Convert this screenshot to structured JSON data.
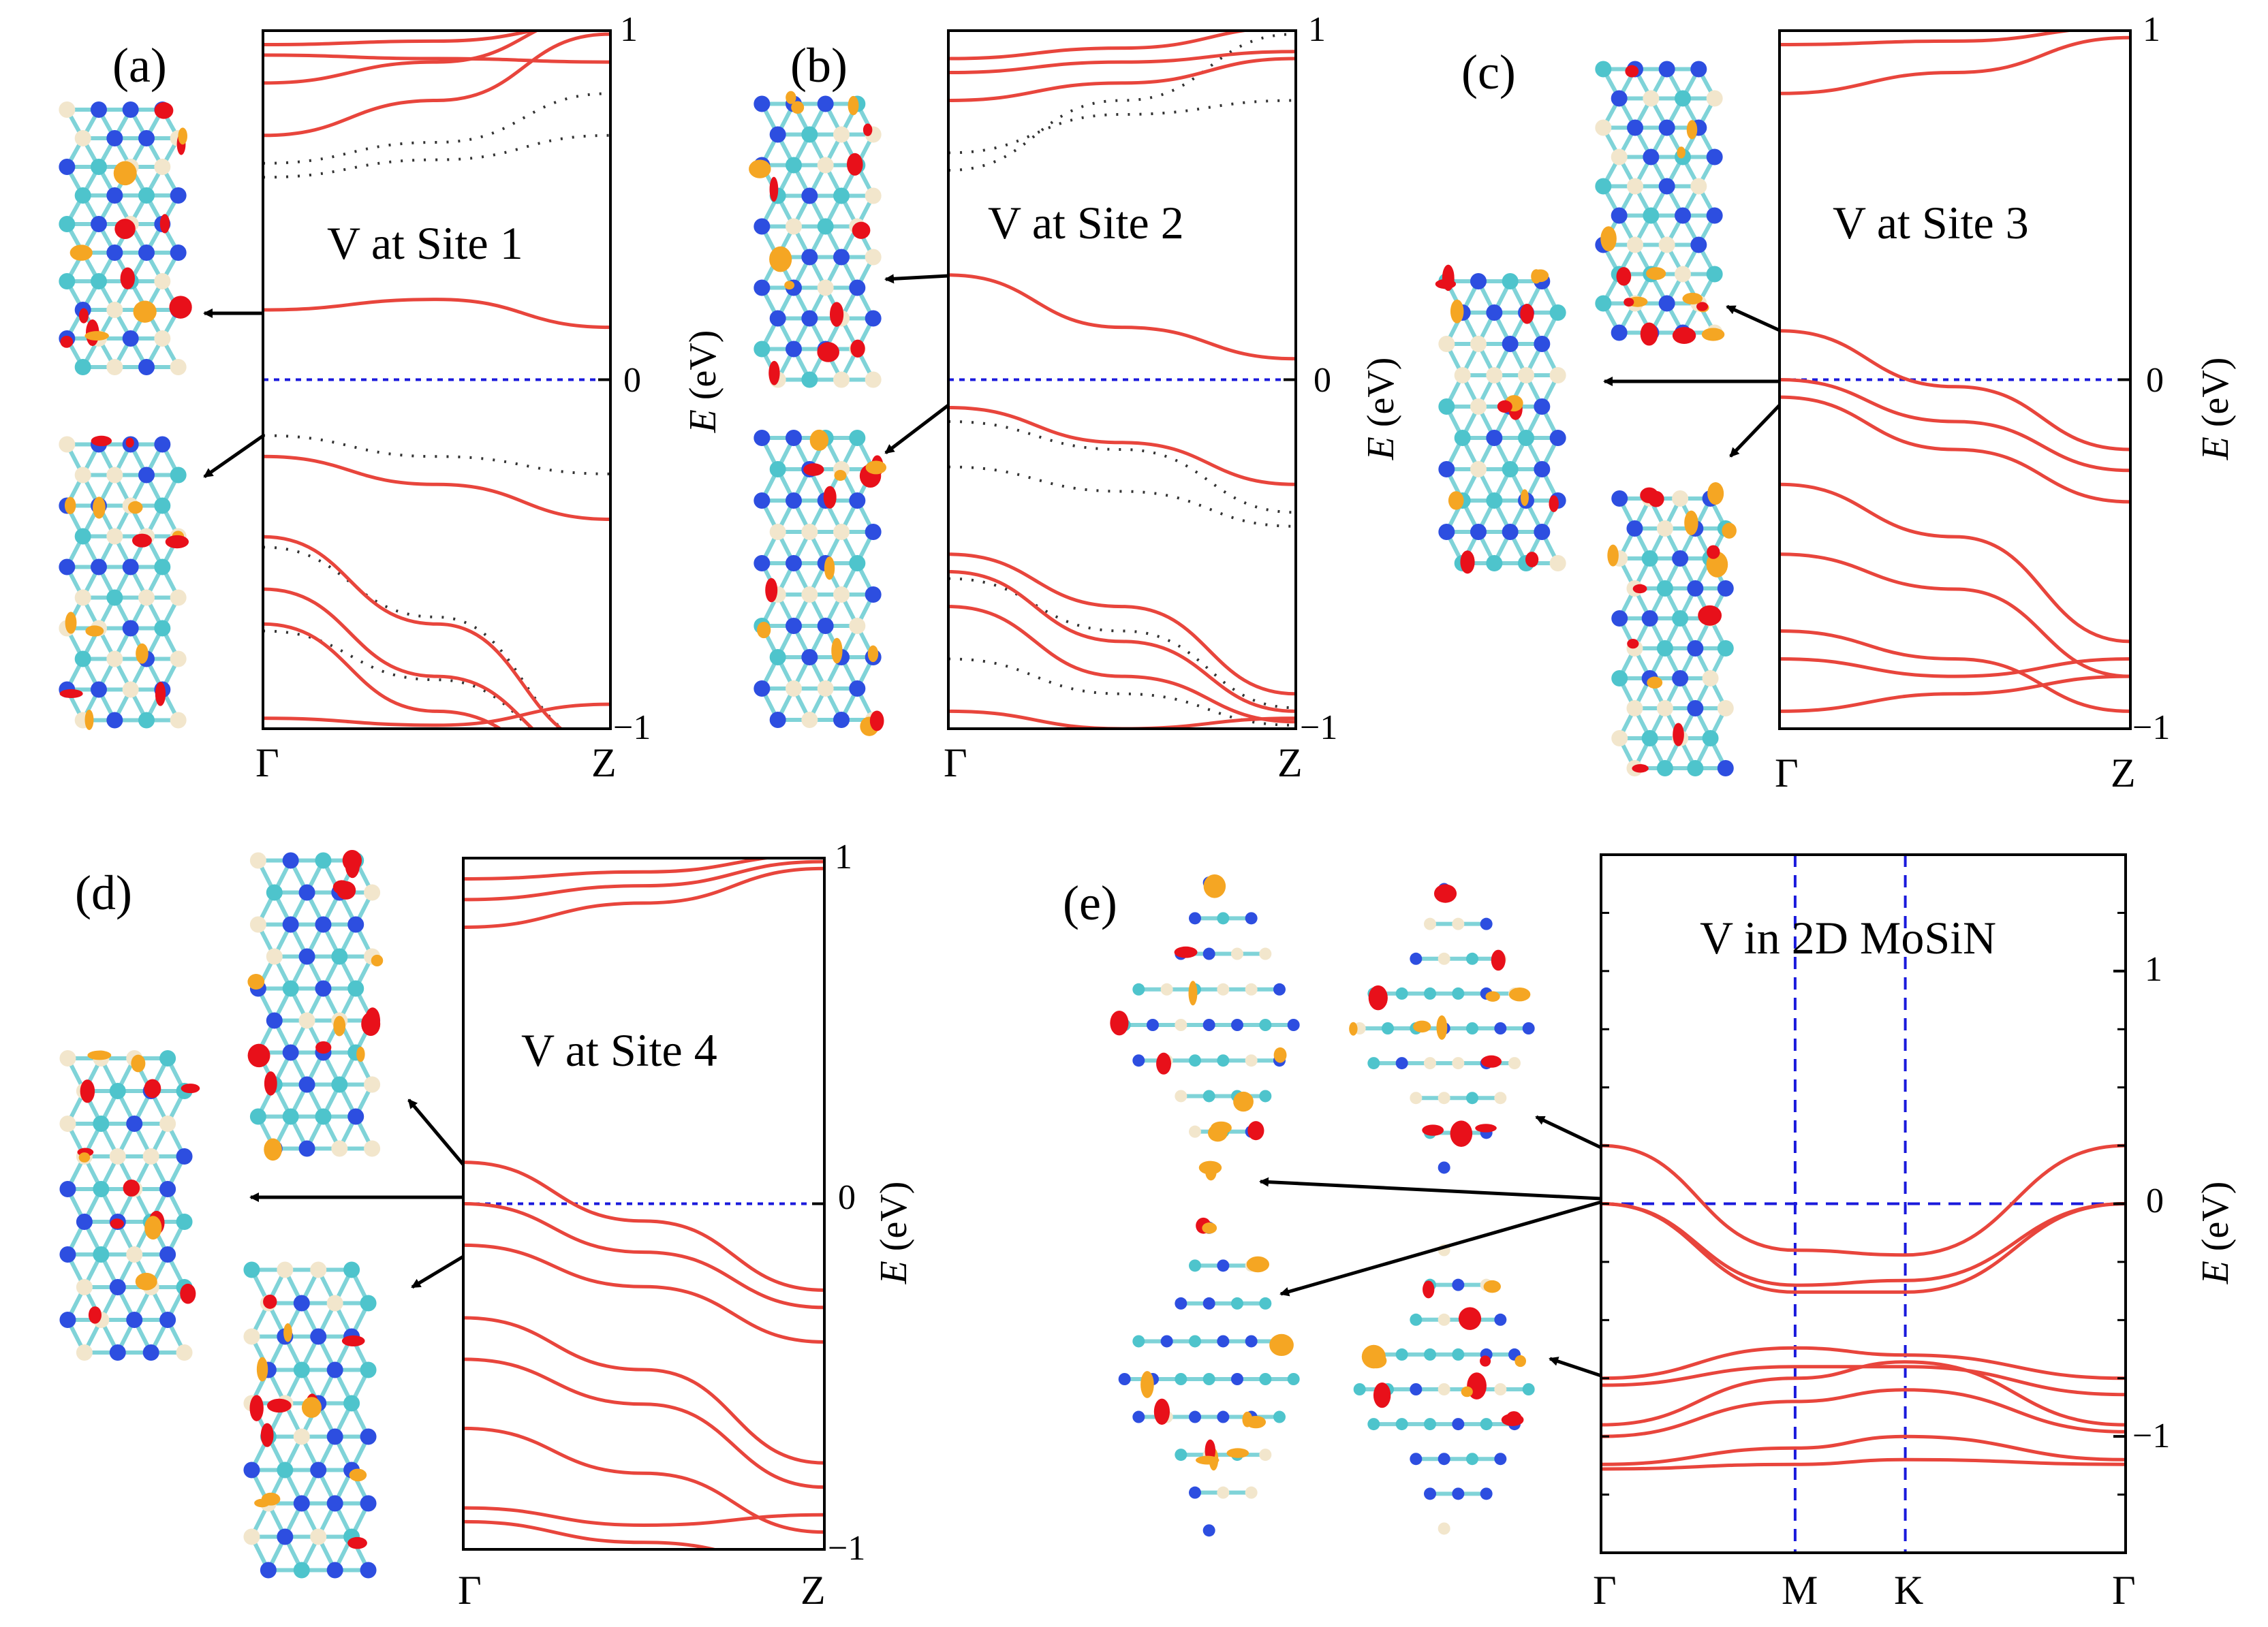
{
  "figure": {
    "axis_unit": "(eV)",
    "energy_symbol": "E"
  },
  "chart_data": [
    {
      "id": "a",
      "panel_label": "(a)",
      "type": "line",
      "title": "V at Site 1",
      "xlabel": "",
      "ylabel": "E (eV)",
      "ylabel_shown": false,
      "x_ticks": [
        "Γ",
        "Z"
      ],
      "y_ticks": [
        "1",
        "0",
        "−1"
      ],
      "ylim": [
        -1,
        1
      ],
      "fermi_level": 0,
      "solid_series": [
        {
          "name": "band",
          "x": [
            0,
            0.5,
            1
          ],
          "y": [
            0.2,
            0.23,
            0.15
          ]
        },
        {
          "name": "band",
          "x": [
            0,
            0.5,
            1
          ],
          "y": [
            -0.22,
            -0.3,
            -0.4
          ]
        },
        {
          "name": "band",
          "x": [
            0,
            0.5,
            1
          ],
          "y": [
            -0.45,
            -0.7,
            -1.05
          ]
        },
        {
          "name": "band",
          "x": [
            0,
            0.5,
            1
          ],
          "y": [
            -0.6,
            -0.85,
            -1.1
          ]
        },
        {
          "name": "band",
          "x": [
            0,
            0.5,
            1
          ],
          "y": [
            -0.7,
            -0.95,
            -1.15
          ]
        },
        {
          "name": "band",
          "x": [
            0,
            0.5,
            1
          ],
          "y": [
            -0.97,
            -0.99,
            -0.93
          ]
        },
        {
          "name": "band",
          "x": [
            0,
            0.5,
            1
          ],
          "y": [
            0.96,
            0.97,
            1.02
          ]
        },
        {
          "name": "band",
          "x": [
            0,
            0.5,
            1
          ],
          "y": [
            0.93,
            0.92,
            0.91
          ]
        },
        {
          "name": "band",
          "x": [
            0,
            0.5,
            1
          ],
          "y": [
            0.85,
            0.91,
            1.05
          ]
        },
        {
          "name": "band",
          "x": [
            0,
            0.5,
            1
          ],
          "y": [
            0.7,
            0.8,
            0.99
          ]
        }
      ],
      "dotted_series": [
        {
          "name": "spin",
          "x": [
            0,
            0.5,
            1
          ],
          "y": [
            0.62,
            0.68,
            0.82
          ]
        },
        {
          "name": "spin",
          "x": [
            0,
            0.5,
            1
          ],
          "y": [
            0.58,
            0.63,
            0.7
          ]
        },
        {
          "name": "spin",
          "x": [
            0,
            0.5,
            1
          ],
          "y": [
            -0.16,
            -0.22,
            -0.27
          ]
        },
        {
          "name": "spin",
          "x": [
            0,
            0.5,
            1
          ],
          "y": [
            -0.48,
            -0.68,
            -1.05
          ]
        },
        {
          "name": "spin",
          "x": [
            0,
            0.5,
            1
          ],
          "y": [
            -0.72,
            -0.86,
            -1.1
          ]
        }
      ]
    },
    {
      "id": "b",
      "panel_label": "(b)",
      "type": "line",
      "title": "V at Site 2",
      "xlabel": "",
      "ylabel": "E (eV)",
      "ylabel_shown": true,
      "x_ticks": [
        "Γ",
        "Z"
      ],
      "y_ticks": [
        "1",
        "0",
        "−1"
      ],
      "ylim": [
        -1,
        1
      ],
      "fermi_level": 0,
      "solid_series": [
        {
          "name": "band",
          "x": [
            0,
            0.5,
            1
          ],
          "y": [
            0.3,
            0.15,
            0.06
          ]
        },
        {
          "name": "band",
          "x": [
            0,
            0.5,
            1
          ],
          "y": [
            -0.08,
            -0.18,
            -0.3
          ]
        },
        {
          "name": "band",
          "x": [
            0,
            0.5,
            1
          ],
          "y": [
            -0.5,
            -0.65,
            -0.9
          ]
        },
        {
          "name": "band",
          "x": [
            0,
            0.5,
            1
          ],
          "y": [
            -0.55,
            -0.75,
            -0.95
          ]
        },
        {
          "name": "band",
          "x": [
            0,
            0.5,
            1
          ],
          "y": [
            -0.65,
            -0.85,
            -0.98
          ]
        },
        {
          "name": "band",
          "x": [
            0,
            0.5,
            1
          ],
          "y": [
            -0.95,
            -1.0,
            -0.97
          ]
        },
        {
          "name": "band",
          "x": [
            0,
            0.5,
            1
          ],
          "y": [
            0.92,
            0.95,
            1.01
          ]
        },
        {
          "name": "band",
          "x": [
            0,
            0.5,
            1
          ],
          "y": [
            0.88,
            0.91,
            0.94
          ]
        },
        {
          "name": "band",
          "x": [
            0,
            0.5,
            1
          ],
          "y": [
            0.8,
            0.85,
            0.92
          ]
        }
      ],
      "dotted_series": [
        {
          "name": "spin",
          "x": [
            0,
            0.5,
            1
          ],
          "y": [
            0.65,
            0.76,
            0.8
          ]
        },
        {
          "name": "spin",
          "x": [
            0,
            0.5,
            1
          ],
          "y": [
            0.6,
            0.8,
            0.99
          ]
        },
        {
          "name": "spin",
          "x": [
            0,
            0.5,
            1
          ],
          "y": [
            -0.12,
            -0.2,
            -0.38
          ]
        },
        {
          "name": "spin",
          "x": [
            0,
            0.5,
            1
          ],
          "y": [
            -0.25,
            -0.32,
            -0.42
          ]
        },
        {
          "name": "spin",
          "x": [
            0,
            0.5,
            1
          ],
          "y": [
            -0.57,
            -0.72,
            -0.94
          ]
        },
        {
          "name": "spin",
          "x": [
            0,
            0.5,
            1
          ],
          "y": [
            -0.8,
            -0.9,
            -0.99
          ]
        }
      ]
    },
    {
      "id": "c",
      "panel_label": "(c)",
      "type": "line",
      "title": "V at Site 3",
      "xlabel": "",
      "ylabel": "E (eV)",
      "ylabel_shown": true,
      "x_ticks": [
        "Γ",
        "Z"
      ],
      "y_ticks": [
        "1",
        "0",
        "−1"
      ],
      "ylim": [
        -1,
        1
      ],
      "fermi_level": 0,
      "solid_series": [
        {
          "name": "band",
          "x": [
            0,
            0.5,
            1
          ],
          "y": [
            0.14,
            -0.02,
            -0.2
          ]
        },
        {
          "name": "band",
          "x": [
            0,
            0.5,
            1
          ],
          "y": [
            0.0,
            -0.12,
            -0.26
          ]
        },
        {
          "name": "band",
          "x": [
            0,
            0.5,
            1
          ],
          "y": [
            -0.05,
            -0.2,
            -0.35
          ]
        },
        {
          "name": "band",
          "x": [
            0,
            0.5,
            1
          ],
          "y": [
            -0.3,
            -0.45,
            -0.75
          ]
        },
        {
          "name": "band",
          "x": [
            0,
            0.5,
            1
          ],
          "y": [
            -0.5,
            -0.6,
            -0.85
          ]
        },
        {
          "name": "band",
          "x": [
            0,
            0.5,
            1
          ],
          "y": [
            -0.72,
            -0.8,
            -0.95
          ]
        },
        {
          "name": "band",
          "x": [
            0,
            0.5,
            1
          ],
          "y": [
            -0.8,
            -0.85,
            -0.8
          ]
        },
        {
          "name": "band",
          "x": [
            0,
            0.5,
            1
          ],
          "y": [
            -0.95,
            -0.9,
            -0.85
          ]
        },
        {
          "name": "band",
          "x": [
            0,
            0.5,
            1
          ],
          "y": [
            0.96,
            0.97,
            1.01
          ]
        },
        {
          "name": "band",
          "x": [
            0,
            0.5,
            1
          ],
          "y": [
            0.82,
            0.88,
            0.98
          ]
        }
      ],
      "dotted_series": []
    },
    {
      "id": "d",
      "panel_label": "(d)",
      "type": "line",
      "title": "V at Site 4",
      "xlabel": "",
      "ylabel": "E (eV)",
      "ylabel_shown": true,
      "x_ticks": [
        "Γ",
        "Z"
      ],
      "y_ticks": [
        "1",
        "0",
        "−1"
      ],
      "ylim": [
        -1,
        1
      ],
      "fermi_level": 0,
      "solid_series": [
        {
          "name": "band",
          "x": [
            0,
            0.5,
            1
          ],
          "y": [
            0.12,
            -0.05,
            -0.25
          ]
        },
        {
          "name": "band",
          "x": [
            0,
            0.5,
            1
          ],
          "y": [
            0.0,
            -0.14,
            -0.3
          ]
        },
        {
          "name": "band",
          "x": [
            0,
            0.5,
            1
          ],
          "y": [
            -0.12,
            -0.24,
            -0.4
          ]
        },
        {
          "name": "band",
          "x": [
            0,
            0.5,
            1
          ],
          "y": [
            -0.33,
            -0.48,
            -0.75
          ]
        },
        {
          "name": "band",
          "x": [
            0,
            0.5,
            1
          ],
          "y": [
            -0.45,
            -0.58,
            -0.82
          ]
        },
        {
          "name": "band",
          "x": [
            0,
            0.5,
            1
          ],
          "y": [
            -0.65,
            -0.78,
            -0.95
          ]
        },
        {
          "name": "band",
          "x": [
            0,
            0.5,
            1
          ],
          "y": [
            -0.88,
            -0.93,
            -0.9
          ]
        },
        {
          "name": "band",
          "x": [
            0,
            0.5,
            1
          ],
          "y": [
            -0.92,
            -0.98,
            -1.05
          ]
        },
        {
          "name": "band",
          "x": [
            0,
            0.5,
            1
          ],
          "y": [
            0.94,
            0.96,
            1.01
          ]
        },
        {
          "name": "band",
          "x": [
            0,
            0.5,
            1
          ],
          "y": [
            0.88,
            0.92,
            0.99
          ]
        },
        {
          "name": "band",
          "x": [
            0,
            0.5,
            1
          ],
          "y": [
            0.8,
            0.87,
            0.97
          ]
        }
      ],
      "dotted_series": []
    },
    {
      "id": "e",
      "panel_label": "(e)",
      "type": "line",
      "title": "V in 2D MoSiN",
      "xlabel": "",
      "ylabel": "E (eV)",
      "ylabel_shown": true,
      "x_ticks": [
        "Γ",
        "M",
        "K",
        "Γ"
      ],
      "x_tick_positions": [
        0,
        0.37,
        0.58,
        1
      ],
      "y_ticks": [
        "1",
        "0",
        "−1"
      ],
      "y_tick_values": [
        1,
        0,
        -1
      ],
      "ylim": [
        -1.5,
        1.5
      ],
      "fermi_level": 0,
      "solid_series": [
        {
          "name": "band",
          "x": [
            0,
            0.37,
            0.58,
            1
          ],
          "y": [
            0.25,
            -0.2,
            -0.22,
            0.25
          ]
        },
        {
          "name": "band",
          "x": [
            0,
            0.37,
            0.58,
            1
          ],
          "y": [
            0.0,
            -0.35,
            -0.33,
            0.0
          ]
        },
        {
          "name": "band",
          "x": [
            0,
            0.37,
            0.58,
            1
          ],
          "y": [
            0.0,
            -0.38,
            -0.38,
            0.0
          ]
        },
        {
          "name": "band",
          "x": [
            0,
            0.37,
            0.58,
            1
          ],
          "y": [
            -0.75,
            -0.62,
            -0.65,
            -0.75
          ]
        },
        {
          "name": "band",
          "x": [
            0,
            0.37,
            0.58,
            1
          ],
          "y": [
            -0.78,
            -0.7,
            -0.7,
            -0.82
          ]
        },
        {
          "name": "band",
          "x": [
            0,
            0.37,
            0.58,
            1
          ],
          "y": [
            -0.95,
            -0.75,
            -0.68,
            -0.95
          ]
        },
        {
          "name": "band",
          "x": [
            0,
            0.37,
            0.58,
            1
          ],
          "y": [
            -1.0,
            -0.85,
            -0.8,
            -0.98
          ]
        },
        {
          "name": "band",
          "x": [
            0,
            0.37,
            0.58,
            1
          ],
          "y": [
            -1.12,
            -1.05,
            -1.0,
            -1.1
          ]
        },
        {
          "name": "band",
          "x": [
            0,
            0.37,
            0.58,
            1
          ],
          "y": [
            -1.14,
            -1.12,
            -1.1,
            -1.12
          ]
        }
      ],
      "dotted_series": []
    }
  ],
  "colors": {
    "band": "#e8453c",
    "spin": "#333333",
    "fermi_1d": "#1a1adc",
    "grid_2d": "#1a1adc",
    "arrow": "#000000",
    "atom_n": "#2d4ee0",
    "atom_mo": "#f2e6cc",
    "atom_si": "#4ec4cc",
    "orbital_red": "#e8101a",
    "orbital_orange": "#f5a623"
  }
}
